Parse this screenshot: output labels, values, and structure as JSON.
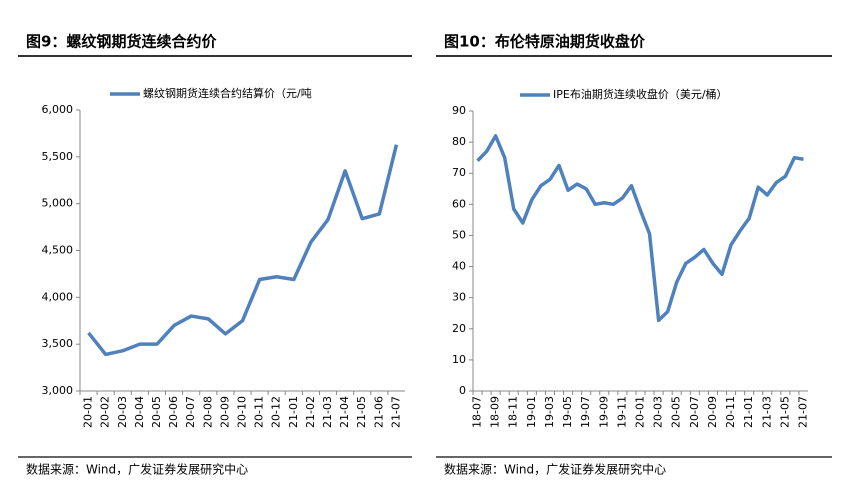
{
  "chart_data": [
    {
      "type": "line",
      "title": "图9：螺纹钢期货连续合约价",
      "source": "数据来源：Wind，广发证券发展研究中心",
      "categories": [
        "20-01",
        "20-02",
        "20-03",
        "20-04",
        "20-05",
        "20-06",
        "20-07",
        "20-08",
        "20-09",
        "20-10",
        "20-11",
        "20-12",
        "21-01",
        "21-02",
        "21-03",
        "21-04",
        "21-05",
        "21-06",
        "21-07"
      ],
      "series": [
        {
          "name": "螺纹钢期货连续合约结算价（元/吨",
          "color": "#4f81bd",
          "values": [
            3620,
            3390,
            3430,
            3500,
            3500,
            3700,
            3800,
            3770,
            3610,
            3750,
            4190,
            4220,
            4190,
            4590,
            4830,
            5350,
            4840,
            4890,
            5630
          ]
        }
      ],
      "ylim": [
        3000,
        6000
      ],
      "yticks": [
        {
          "value": 3000,
          "label": "3,000"
        },
        {
          "value": 3500,
          "label": "3,500"
        },
        {
          "value": 4000,
          "label": "4,000"
        },
        {
          "value": 4500,
          "label": "4,500"
        },
        {
          "value": 5000,
          "label": "5,000"
        },
        {
          "value": 5500,
          "label": "5,500"
        },
        {
          "value": 6000,
          "label": "6,000"
        }
      ],
      "grid": false,
      "legend": "top"
    },
    {
      "type": "line",
      "title": "图10：布伦特原油期货收盘价",
      "source": "数据来源：Wind，广发证券发展研究中心",
      "categories": [
        "18-07",
        null,
        "18-09",
        null,
        "18-11",
        null,
        "19-01",
        null,
        "19-03",
        null,
        "19-05",
        null,
        "19-07",
        null,
        "19-09",
        null,
        "19-11",
        null,
        "20-01",
        null,
        "20-03",
        null,
        "20-05",
        null,
        "20-07",
        null,
        "20-09",
        null,
        "20-11",
        null,
        "21-01",
        null,
        "21-03",
        null,
        "21-05",
        null,
        "21-07"
      ],
      "series": [
        {
          "name": "IPE布油期货连续收盘价（美元/桶）",
          "color": "#4f81bd",
          "values": [
            74,
            77,
            82,
            75,
            58.5,
            54,
            61.5,
            66,
            68,
            72.5,
            64.5,
            66.5,
            65,
            60,
            60.5,
            60,
            62,
            66,
            58,
            50.5,
            22.7,
            25.5,
            35,
            41,
            43,
            45.5,
            41,
            37.5,
            47,
            51.5,
            55.5,
            65.5,
            63,
            67,
            69,
            75,
            74.5
          ]
        }
      ],
      "ylim": [
        0,
        90
      ],
      "yticks": [
        0,
        10,
        20,
        30,
        40,
        50,
        60,
        70,
        80,
        90
      ],
      "grid": false,
      "legend": "top"
    }
  ]
}
